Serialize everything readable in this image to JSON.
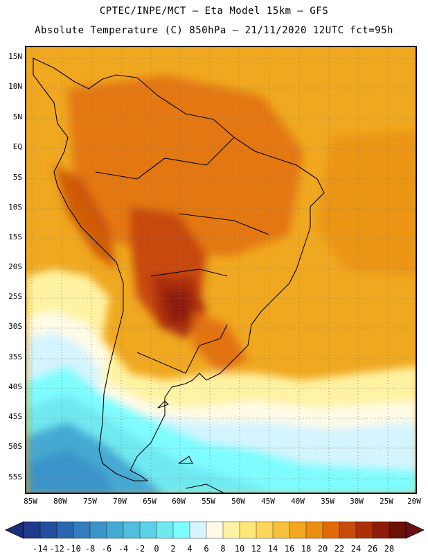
{
  "title": {
    "line1": "CPTEC/INPE/MCT –  Eta Model 15km – GFS",
    "line2": "Absolute Temperature (C) 850hPa – 21/11/2020 12UTC fct=95h"
  },
  "map": {
    "lat_labels": [
      "15N",
      "10N",
      "5N",
      "EQ",
      "5S",
      "10S",
      "15S",
      "20S",
      "25S",
      "30S",
      "35S",
      "40S",
      "45S",
      "50S",
      "55S"
    ],
    "lon_labels": [
      "85W",
      "80W",
      "75W",
      "70W",
      "65W",
      "60W",
      "55W",
      "50W",
      "45W",
      "40W",
      "35W",
      "30W",
      "25W",
      "20W"
    ]
  },
  "legend": {
    "ticks": [
      "-14",
      "-12",
      "-10",
      "-8",
      "-6",
      "-4",
      "-2",
      "0",
      "2",
      "4",
      "6",
      "8",
      "10",
      "12",
      "14",
      "16",
      "18",
      "20",
      "22",
      "24",
      "26",
      "28"
    ],
    "colors": [
      "#1f3a8a",
      "#234f9c",
      "#2966ad",
      "#327dbd",
      "#3b94c9",
      "#45a9d3",
      "#50bedc",
      "#5dd2e6",
      "#6fe8f0",
      "#7ffcff",
      "#d4f4ff",
      "#fffbe6",
      "#fff3a3",
      "#ffe77a",
      "#ffd55c",
      "#f7c13f",
      "#f0a820",
      "#ea8f12",
      "#e06a0a",
      "#c84a08",
      "#ac2f08",
      "#8e1c08",
      "#6b1006"
    ],
    "low_color": "#1b2f78",
    "high_color": "#6a0f18"
  }
}
